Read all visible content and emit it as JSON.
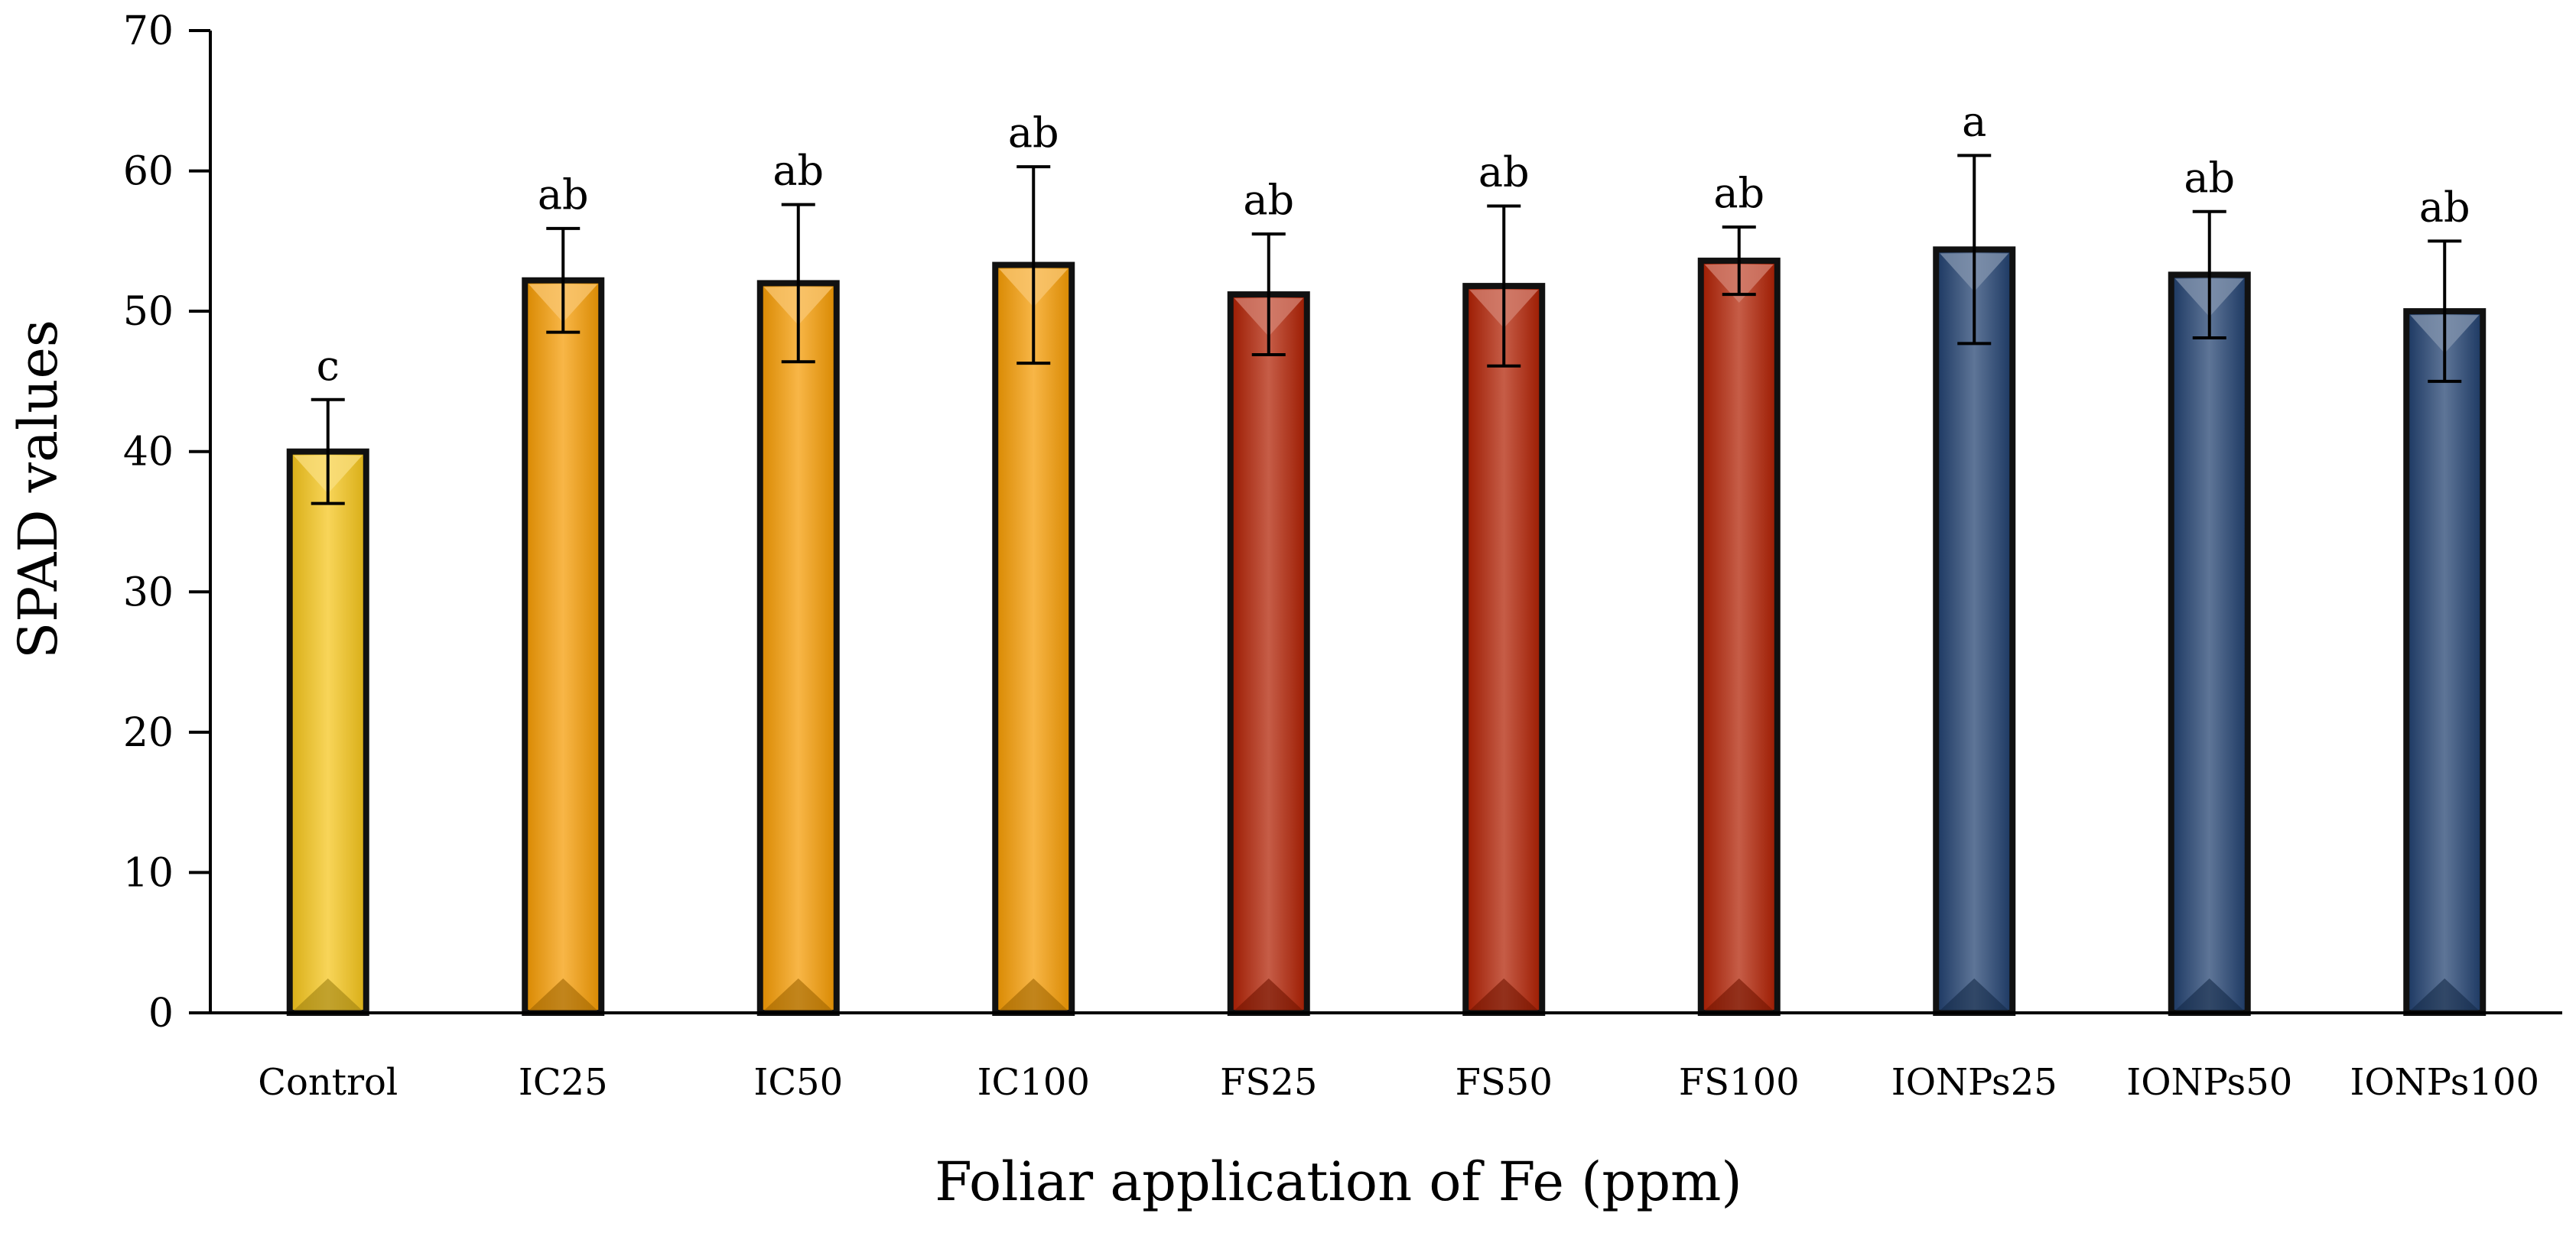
{
  "chart_data": {
    "type": "bar",
    "title": "",
    "xlabel": "Foliar application of Fe (ppm)",
    "ylabel": "SPAD values",
    "ylim": [
      0,
      70
    ],
    "yticks": [
      0,
      10,
      20,
      30,
      40,
      50,
      60,
      70
    ],
    "grid": false,
    "legend": "none",
    "categories": [
      "Control",
      "IC25",
      "IC50",
      "IC100",
      "FS25",
      "FS50",
      "FS100",
      "IONPs25",
      "IONPs50",
      "IONPs100"
    ],
    "values": [
      40.0,
      52.2,
      52.0,
      53.3,
      51.2,
      51.8,
      53.6,
      54.4,
      52.6,
      50.0
    ],
    "errors": [
      3.7,
      3.7,
      5.6,
      7.0,
      4.3,
      5.7,
      2.4,
      6.7,
      4.5,
      5.0
    ],
    "significance_letters": [
      "c",
      "ab",
      "ab",
      "ab",
      "ab",
      "ab",
      "ab",
      "a",
      "ab",
      "ab"
    ],
    "bar_colors": [
      "#F5C518",
      "#F59A00",
      "#F59A00",
      "#F59A00",
      "#B01E00",
      "#B01E00",
      "#B01E00",
      "#1F3F6E",
      "#1F3F6E",
      "#1F3F6E"
    ]
  }
}
